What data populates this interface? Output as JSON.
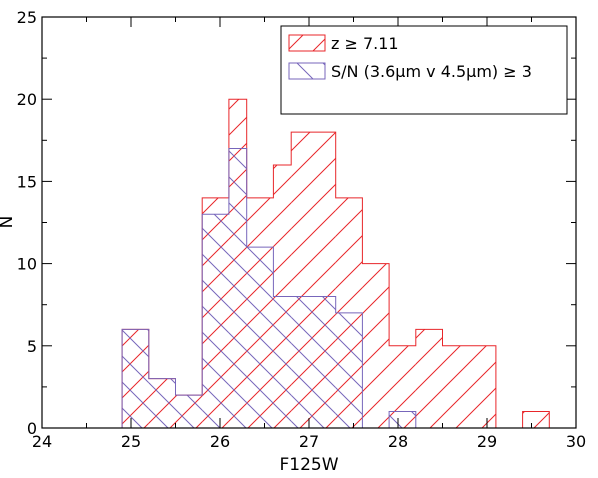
{
  "chart_data": {
    "type": "bar",
    "histogram": true,
    "xlabel": "F125W",
    "ylabel": "N",
    "xlim": [
      24,
      30
    ],
    "ylim": [
      0,
      25
    ],
    "xticks": [
      24,
      25,
      26,
      27,
      28,
      29,
      30
    ],
    "yticks": [
      0,
      5,
      10,
      15,
      20,
      25
    ],
    "x_tick_labels": [
      "24",
      "25",
      "26",
      "27",
      "28",
      "29",
      "30"
    ],
    "y_tick_labels": [
      "0",
      "5",
      "10",
      "15",
      "20",
      "25"
    ],
    "legend_position": "top-right",
    "series": [
      {
        "name": "z ≥ 7.11",
        "color": "#e8262a",
        "hatch": "forward-diagonal",
        "bins": [
          {
            "x0": 24.9,
            "x1": 25.2,
            "y": 6
          },
          {
            "x0": 25.2,
            "x1": 25.5,
            "y": 3
          },
          {
            "x0": 25.5,
            "x1": 25.8,
            "y": 2
          },
          {
            "x0": 25.8,
            "x1": 26.1,
            "y": 14
          },
          {
            "x0": 26.1,
            "x1": 26.3,
            "y": 20
          },
          {
            "x0": 26.3,
            "x1": 26.6,
            "y": 14
          },
          {
            "x0": 26.6,
            "x1": 26.8,
            "y": 16
          },
          {
            "x0": 26.8,
            "x1": 27.3,
            "y": 18
          },
          {
            "x0": 27.3,
            "x1": 27.6,
            "y": 14
          },
          {
            "x0": 27.6,
            "x1": 27.9,
            "y": 10
          },
          {
            "x0": 27.9,
            "x1": 28.2,
            "y": 5
          },
          {
            "x0": 28.2,
            "x1": 28.5,
            "y": 6
          },
          {
            "x0": 28.5,
            "x1": 29.1,
            "y": 5
          },
          {
            "x0": 29.1,
            "x1": 29.4,
            "y": 0
          },
          {
            "x0": 29.4,
            "x1": 29.7,
            "y": 1
          }
        ]
      },
      {
        "name": "S/N (3.6μm v 4.5μm) ≥ 3",
        "color": "#7766bb",
        "hatch": "back-diagonal",
        "bins": [
          {
            "x0": 24.9,
            "x1": 25.2,
            "y": 6
          },
          {
            "x0": 25.2,
            "x1": 25.5,
            "y": 3
          },
          {
            "x0": 25.5,
            "x1": 25.8,
            "y": 2
          },
          {
            "x0": 25.8,
            "x1": 26.1,
            "y": 13
          },
          {
            "x0": 26.1,
            "x1": 26.3,
            "y": 17
          },
          {
            "x0": 26.3,
            "x1": 26.6,
            "y": 11
          },
          {
            "x0": 26.6,
            "x1": 26.8,
            "y": 8
          },
          {
            "x0": 26.8,
            "x1": 27.3,
            "y": 8
          },
          {
            "x0": 27.3,
            "x1": 27.6,
            "y": 7
          },
          {
            "x0": 27.6,
            "x1": 27.9,
            "y": 0
          },
          {
            "x0": 27.9,
            "x1": 28.2,
            "y": 1
          }
        ]
      }
    ]
  }
}
